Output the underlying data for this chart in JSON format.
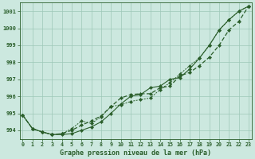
{
  "title": "Graphe pression niveau de la mer (hPa)",
  "xlabel_hours": [
    0,
    1,
    2,
    3,
    4,
    5,
    6,
    7,
    8,
    9,
    10,
    11,
    12,
    13,
    14,
    15,
    16,
    17,
    18,
    19,
    20,
    21,
    22,
    23
  ],
  "ylim": [
    993.5,
    1001.5
  ],
  "yticks": [
    994,
    995,
    996,
    997,
    998,
    999,
    1000,
    1001
  ],
  "bg_color": "#cce8df",
  "grid_color": "#9ec8b8",
  "line_color": "#2a5e2a",
  "line1_x": [
    0,
    1,
    2,
    3,
    4,
    5,
    6,
    7,
    8,
    9,
    10,
    11,
    12,
    13,
    14,
    15,
    16,
    17,
    18,
    19,
    20,
    21,
    22,
    23
  ],
  "line1_y": [
    994.9,
    994.1,
    993.9,
    993.75,
    993.75,
    993.8,
    994.0,
    994.2,
    994.5,
    995.0,
    995.55,
    996.0,
    996.1,
    996.5,
    996.6,
    997.0,
    997.1,
    997.6,
    998.25,
    999.0,
    999.9,
    1000.5,
    1001.0,
    1001.3
  ],
  "line2_x": [
    0,
    1,
    2,
    3,
    4,
    5,
    6,
    7,
    8,
    9,
    10,
    11,
    12,
    13,
    14,
    15,
    16,
    17,
    18,
    19,
    20,
    21,
    22,
    23
  ],
  "line2_y": [
    994.9,
    994.1,
    993.9,
    993.75,
    993.8,
    994.0,
    994.3,
    994.55,
    994.85,
    995.4,
    995.9,
    996.1,
    996.15,
    996.15,
    996.5,
    996.6,
    997.2,
    997.4,
    997.8,
    998.3,
    999.0,
    999.9,
    1000.4,
    1001.3
  ],
  "line3_x": [
    0,
    1,
    2,
    3,
    4,
    5,
    6,
    7,
    8,
    9,
    10,
    11,
    12,
    13,
    14,
    15,
    16,
    17,
    18,
    19,
    20,
    21,
    22,
    23
  ],
  "line3_y": [
    994.9,
    994.1,
    993.9,
    993.75,
    993.8,
    994.1,
    994.55,
    994.4,
    994.8,
    995.4,
    995.5,
    995.7,
    995.8,
    995.9,
    996.4,
    996.8,
    997.3,
    997.8,
    998.25,
    999.0,
    999.9,
    1000.5,
    1001.0,
    1001.3
  ]
}
